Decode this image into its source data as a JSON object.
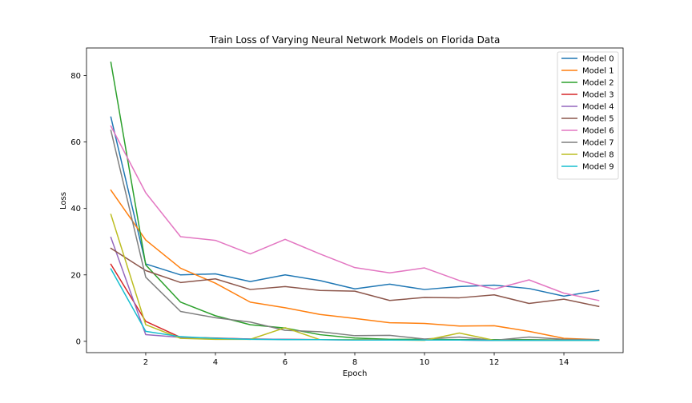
{
  "chart_data": {
    "type": "line",
    "title": "Train Loss of Varying Neural Network Models on Florida Data",
    "xlabel": "Epoch",
    "ylabel": "Loss",
    "xlim": [
      0.3,
      15.7
    ],
    "ylim": [
      -3.4,
      88.3
    ],
    "xticks": [
      2,
      4,
      6,
      8,
      10,
      12,
      14
    ],
    "yticks": [
      0,
      20,
      40,
      60,
      80
    ],
    "grid": false,
    "legend_position": "top-right",
    "x": [
      1,
      2,
      3,
      4,
      5,
      6,
      7,
      8,
      9,
      10,
      11,
      12,
      13,
      14,
      15
    ],
    "series": [
      {
        "name": "Model 0",
        "color": "#1f77b4",
        "values": [
          67.5,
          23.3,
          20.0,
          20.3,
          18.0,
          20.0,
          18.3,
          15.8,
          17.2,
          15.6,
          16.5,
          16.9,
          15.9,
          13.6,
          15.3
        ]
      },
      {
        "name": "Model 1",
        "color": "#ff7f0e",
        "values": [
          45.5,
          30.5,
          22.0,
          17.5,
          11.8,
          10.1,
          8.1,
          6.9,
          5.6,
          5.4,
          4.6,
          4.7,
          3.0,
          0.9,
          0.5
        ]
      },
      {
        "name": "Model 2",
        "color": "#2ca02c",
        "values": [
          84.0,
          23.0,
          11.8,
          7.7,
          5.0,
          4.0,
          2.0,
          1.0,
          0.6,
          0.6,
          0.5,
          0.5,
          0.5,
          0.4,
          0.4
        ]
      },
      {
        "name": "Model 3",
        "color": "#d62728",
        "values": [
          23.2,
          6.0,
          1.2,
          1.0,
          0.7,
          0.6,
          0.5,
          0.5,
          0.4,
          0.4,
          0.4,
          0.3,
          0.3,
          0.3,
          0.3
        ]
      },
      {
        "name": "Model 4",
        "color": "#9467bd",
        "values": [
          31.3,
          2.0,
          1.2,
          0.9,
          0.7,
          0.6,
          0.5,
          0.4,
          0.4,
          0.4,
          0.4,
          0.3,
          0.3,
          0.3,
          0.3
        ]
      },
      {
        "name": "Model 5",
        "color": "#8c564b",
        "values": [
          28.0,
          21.3,
          17.7,
          18.8,
          15.6,
          16.5,
          15.3,
          15.1,
          12.3,
          13.2,
          13.1,
          14.0,
          11.4,
          12.7,
          10.5
        ]
      },
      {
        "name": "Model 6",
        "color": "#e377c2",
        "values": [
          64.8,
          44.7,
          31.5,
          30.4,
          26.3,
          30.7,
          26.3,
          22.2,
          20.6,
          22.1,
          18.3,
          15.7,
          18.5,
          14.5,
          12.3
        ]
      },
      {
        "name": "Model 7",
        "color": "#7f7f7f",
        "values": [
          63.5,
          19.3,
          9.0,
          7.1,
          5.8,
          3.3,
          2.9,
          1.7,
          1.8,
          0.7,
          1.3,
          0.3,
          1.3,
          0.6,
          0.5
        ]
      },
      {
        "name": "Model 8",
        "color": "#bcbd22",
        "values": [
          38.2,
          5.0,
          0.9,
          0.6,
          0.6,
          4.1,
          0.5,
          0.5,
          0.4,
          0.3,
          2.5,
          0.3,
          0.3,
          0.3,
          0.3
        ]
      },
      {
        "name": "Model 9",
        "color": "#17becf",
        "values": [
          21.8,
          3.0,
          1.4,
          0.9,
          0.6,
          0.5,
          0.5,
          0.4,
          0.4,
          0.4,
          0.4,
          0.3,
          0.3,
          0.3,
          0.3
        ]
      }
    ]
  }
}
